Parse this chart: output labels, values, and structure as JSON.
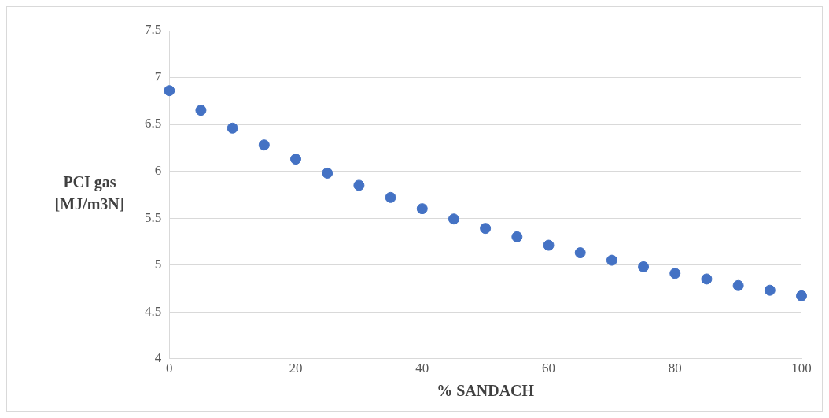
{
  "chart_data": {
    "type": "scatter",
    "xlabel": "% SANDACH",
    "ylabel": "PCI gas [MJ/m3N]",
    "x": [
      0,
      5,
      10,
      15,
      20,
      25,
      30,
      35,
      40,
      45,
      50,
      55,
      60,
      65,
      70,
      75,
      80,
      85,
      90,
      95,
      100
    ],
    "series": [
      {
        "color": "#4472c4",
        "values": [
          6.86,
          6.65,
          6.46,
          6.28,
          6.13,
          5.98,
          5.85,
          5.72,
          5.6,
          5.49,
          5.39,
          5.3,
          5.21,
          5.13,
          5.05,
          4.98,
          4.91,
          4.85,
          4.78,
          4.73,
          4.67
        ]
      }
    ],
    "xlim": [
      0,
      100
    ],
    "xticks": [
      0,
      20,
      40,
      60,
      80,
      100
    ],
    "ylim": [
      4,
      7.5
    ],
    "yticks": [
      4,
      4.5,
      5,
      5.5,
      6,
      6.5,
      7,
      7.5
    ],
    "grid": "y",
    "marker": "circle",
    "legend": false
  }
}
